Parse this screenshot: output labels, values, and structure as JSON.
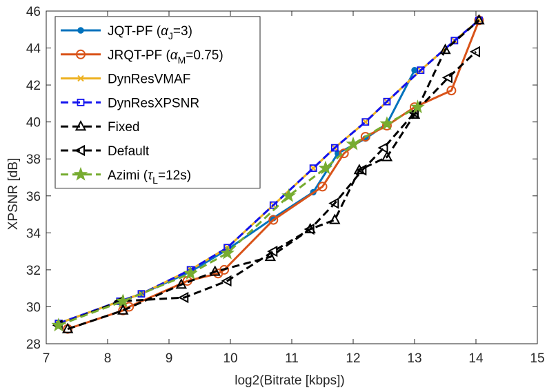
{
  "chart_data": {
    "type": "line",
    "title": "",
    "xlabel": "log2(Bitrate [kbps])",
    "ylabel": "XPSNR [dB]",
    "xlim": [
      7,
      15
    ],
    "ylim": [
      28,
      46
    ],
    "xticks": [
      7,
      8,
      9,
      10,
      11,
      12,
      13,
      14,
      15
    ],
    "yticks": [
      28,
      30,
      32,
      34,
      36,
      38,
      40,
      42,
      44,
      46
    ],
    "grid": false,
    "legend_position": "top-left",
    "series": [
      {
        "name": "JQT-PF",
        "legend_main": "JQT-PF (",
        "legend_greek": "α",
        "legend_sub": "J",
        "legend_tail": "=3)",
        "color": "#0072BD",
        "dash": "solid",
        "marker": "dot",
        "x": [
          7.2,
          8.2,
          8.55,
          9.35,
          9.95,
          10.7,
          11.35,
          11.75,
          12.2,
          12.55,
          13.0
        ],
        "y": [
          29.1,
          30.3,
          30.7,
          31.9,
          33.1,
          34.8,
          36.2,
          38.3,
          39.1,
          39.9,
          42.8
        ]
      },
      {
        "name": "JRQT-PF",
        "legend_main": "JRQT-PF (",
        "legend_greek": "α",
        "legend_sub": "M",
        "legend_tail": "=0.75)",
        "color": "#D95319",
        "dash": "solid",
        "marker": "circle",
        "x": [
          7.35,
          8.25,
          8.35,
          9.3,
          9.8,
          9.9,
          10.7,
          11.5,
          11.85,
          12.2,
          12.55,
          13.0,
          13.6,
          14.05
        ],
        "y": [
          28.8,
          29.8,
          30.0,
          31.4,
          31.8,
          32.0,
          34.7,
          36.5,
          38.3,
          39.2,
          39.8,
          40.8,
          41.7,
          45.5
        ]
      },
      {
        "name": "DynResVMAF",
        "legend_main": "DynResVMAF",
        "color": "#EDB120",
        "dash": "solid",
        "marker": "x",
        "x": [
          7.2,
          8.2,
          8.55,
          9.35,
          9.95,
          10.7,
          11.35,
          11.7,
          12.2,
          12.55,
          13.1,
          13.65,
          14.05
        ],
        "y": [
          29.1,
          30.3,
          30.7,
          32.0,
          33.2,
          35.5,
          37.5,
          38.6,
          40.0,
          41.1,
          42.8,
          44.4,
          45.5
        ]
      },
      {
        "name": "DynResXPSNR",
        "legend_main": "DynResXPSNR",
        "color": "#1212EE",
        "dash": "dash",
        "marker": "square",
        "x": [
          7.2,
          8.2,
          8.55,
          9.35,
          9.95,
          10.7,
          11.35,
          11.7,
          12.2,
          12.55,
          13.1,
          13.65,
          14.05
        ],
        "y": [
          29.1,
          30.3,
          30.7,
          32.0,
          33.2,
          35.5,
          37.5,
          38.6,
          40.0,
          41.1,
          42.8,
          44.4,
          45.5
        ]
      },
      {
        "name": "Fixed",
        "legend_main": "Fixed",
        "color": "#000000",
        "dash": "dash",
        "marker": "triangle-up",
        "x": [
          7.35,
          8.25,
          9.2,
          9.75,
          10.65,
          11.3,
          11.7,
          12.1,
          12.55,
          13.0,
          13.5,
          14.05
        ],
        "y": [
          28.8,
          29.8,
          31.2,
          31.9,
          32.7,
          34.2,
          34.7,
          37.4,
          38.1,
          40.4,
          43.9,
          45.5
        ]
      },
      {
        "name": "Default",
        "legend_main": "Default",
        "color": "#000000",
        "dash": "dash",
        "marker": "triangle-left",
        "x": [
          7.2,
          8.2,
          9.25,
          9.95,
          10.7,
          11.3,
          11.7,
          12.15,
          12.5,
          13.0,
          13.55,
          14.0
        ],
        "y": [
          29.0,
          30.3,
          30.5,
          31.4,
          33.0,
          34.2,
          35.6,
          37.4,
          38.6,
          40.5,
          42.4,
          43.8
        ]
      },
      {
        "name": "Azimi",
        "legend_main": "Azimi (",
        "legend_greek": "τ",
        "legend_sub": "L",
        "legend_tail": "=12s)",
        "color": "#77AC30",
        "dash": "dash",
        "marker": "star",
        "x": [
          7.2,
          8.25,
          9.35,
          9.95,
          10.95,
          11.55,
          12.0,
          12.55,
          13.05
        ],
        "y": [
          29.0,
          30.3,
          31.8,
          32.9,
          36.0,
          37.5,
          38.8,
          39.9,
          40.8
        ]
      }
    ]
  }
}
